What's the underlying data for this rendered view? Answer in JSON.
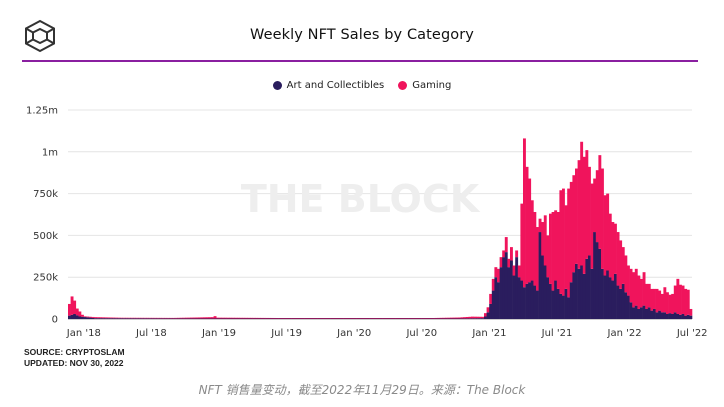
{
  "header": {
    "title": "Weekly NFT Sales by Category"
  },
  "legend": [
    {
      "label": "Art and Collectibles",
      "color": "#2a1d5e"
    },
    {
      "label": "Gaming",
      "color": "#f0145c"
    }
  ],
  "watermark": "THE BLOCK",
  "footer": {
    "source": "SOURCE: CRYPTOSLAM",
    "updated": "UPDATED: NOV 30, 2022"
  },
  "caption": "NFT 销售量变动，截至2022年11月29日。来源：The Block",
  "chart_data": {
    "type": "bar",
    "stacked": true,
    "title": "Weekly NFT Sales by Category",
    "xlabel": "",
    "ylabel": "",
    "ylim": [
      0,
      1250000
    ],
    "yticks": [
      0,
      250000,
      500000,
      750000,
      1000000,
      1250000
    ],
    "ytick_labels": [
      "0",
      "250k",
      "500k",
      "750k",
      "1m",
      "1.25m"
    ],
    "xtick_labels": [
      "Jan '18",
      "Jul '18",
      "Jan '19",
      "Jul '19",
      "Jan '20",
      "Jul '20",
      "Jan '21",
      "Jul '21",
      "Jan '22",
      "Jul '22"
    ],
    "grid": true,
    "legend_position": "top-center",
    "series": [
      {
        "name": "Art and Collectibles",
        "color": "#2a1d5e",
        "anchors": [
          [
            0,
            20000
          ],
          [
            2,
            30000
          ],
          [
            4,
            15000
          ],
          [
            10,
            5000
          ],
          [
            50,
            3000
          ],
          [
            100,
            3000
          ],
          [
            150,
            3000
          ],
          [
            159,
            5000
          ],
          [
            160,
            15000
          ],
          [
            161,
            40000
          ],
          [
            162,
            90000
          ],
          [
            163,
            170000
          ],
          [
            164,
            250000
          ],
          [
            165,
            220000
          ],
          [
            166,
            310000
          ],
          [
            167,
            370000
          ],
          [
            168,
            400000
          ],
          [
            169,
            310000
          ],
          [
            170,
            350000
          ],
          [
            171,
            260000
          ],
          [
            172,
            370000
          ],
          [
            173,
            250000
          ],
          [
            174,
            230000
          ],
          [
            175,
            190000
          ],
          [
            176,
            210000
          ],
          [
            177,
            220000
          ],
          [
            178,
            230000
          ],
          [
            179,
            200000
          ],
          [
            180,
            170000
          ],
          [
            181,
            520000
          ],
          [
            182,
            380000
          ],
          [
            183,
            320000
          ],
          [
            184,
            250000
          ],
          [
            185,
            210000
          ],
          [
            186,
            170000
          ],
          [
            187,
            230000
          ],
          [
            188,
            180000
          ],
          [
            189,
            150000
          ],
          [
            190,
            140000
          ],
          [
            191,
            180000
          ],
          [
            192,
            130000
          ],
          [
            193,
            220000
          ],
          [
            194,
            280000
          ],
          [
            195,
            330000
          ],
          [
            196,
            300000
          ],
          [
            197,
            320000
          ],
          [
            198,
            270000
          ],
          [
            199,
            360000
          ],
          [
            200,
            380000
          ],
          [
            201,
            300000
          ],
          [
            202,
            520000
          ],
          [
            203,
            460000
          ],
          [
            204,
            420000
          ],
          [
            205,
            300000
          ],
          [
            206,
            260000
          ],
          [
            207,
            290000
          ],
          [
            208,
            250000
          ],
          [
            209,
            230000
          ],
          [
            210,
            270000
          ],
          [
            211,
            200000
          ],
          [
            212,
            180000
          ],
          [
            213,
            210000
          ],
          [
            214,
            160000
          ],
          [
            215,
            140000
          ],
          [
            216,
            100000
          ],
          [
            217,
            70000
          ],
          [
            218,
            80000
          ],
          [
            219,
            60000
          ],
          [
            220,
            70000
          ],
          [
            221,
            80000
          ],
          [
            222,
            60000
          ],
          [
            223,
            70000
          ],
          [
            224,
            50000
          ],
          [
            225,
            60000
          ],
          [
            226,
            40000
          ],
          [
            227,
            50000
          ],
          [
            228,
            40000
          ],
          [
            229,
            40000
          ],
          [
            230,
            30000
          ],
          [
            231,
            35000
          ],
          [
            232,
            30000
          ],
          [
            233,
            40000
          ],
          [
            234,
            30000
          ],
          [
            235,
            25000
          ],
          [
            236,
            30000
          ],
          [
            237,
            20000
          ],
          [
            238,
            25000
          ],
          [
            239,
            20000
          ]
        ]
      },
      {
        "name": "Gaming",
        "color": "#f0145c",
        "anchors": [
          [
            0,
            70000
          ],
          [
            1,
            110000
          ],
          [
            2,
            80000
          ],
          [
            3,
            40000
          ],
          [
            4,
            30000
          ],
          [
            5,
            12000
          ],
          [
            6,
            4000
          ],
          [
            10,
            6000
          ],
          [
            20,
            3000
          ],
          [
            40,
            3000
          ],
          [
            55,
            8000
          ],
          [
            56,
            14000
          ],
          [
            57,
            5000
          ],
          [
            80,
            3000
          ],
          [
            100,
            3000
          ],
          [
            120,
            3000
          ],
          [
            140,
            3000
          ],
          [
            150,
            6000
          ],
          [
            155,
            10000
          ],
          [
            159,
            8000
          ],
          [
            160,
            20000
          ],
          [
            161,
            30000
          ],
          [
            162,
            60000
          ],
          [
            163,
            70000
          ],
          [
            164,
            60000
          ],
          [
            165,
            80000
          ],
          [
            166,
            60000
          ],
          [
            167,
            40000
          ],
          [
            168,
            90000
          ],
          [
            169,
            50000
          ],
          [
            170,
            80000
          ],
          [
            171,
            60000
          ],
          [
            172,
            40000
          ],
          [
            173,
            70000
          ],
          [
            174,
            460000
          ],
          [
            175,
            890000
          ],
          [
            176,
            700000
          ],
          [
            177,
            620000
          ],
          [
            178,
            480000
          ],
          [
            179,
            440000
          ],
          [
            180,
            380000
          ],
          [
            181,
            80000
          ],
          [
            182,
            200000
          ],
          [
            183,
            300000
          ],
          [
            184,
            250000
          ],
          [
            185,
            420000
          ],
          [
            186,
            470000
          ],
          [
            187,
            420000
          ],
          [
            188,
            460000
          ],
          [
            189,
            620000
          ],
          [
            190,
            640000
          ],
          [
            191,
            500000
          ],
          [
            192,
            650000
          ],
          [
            193,
            600000
          ],
          [
            194,
            580000
          ],
          [
            195,
            570000
          ],
          [
            196,
            650000
          ],
          [
            197,
            740000
          ],
          [
            198,
            700000
          ],
          [
            199,
            650000
          ],
          [
            200,
            530000
          ],
          [
            201,
            510000
          ],
          [
            202,
            320000
          ],
          [
            203,
            430000
          ],
          [
            204,
            560000
          ],
          [
            205,
            600000
          ],
          [
            206,
            480000
          ],
          [
            207,
            460000
          ],
          [
            208,
            380000
          ],
          [
            209,
            350000
          ],
          [
            210,
            300000
          ],
          [
            211,
            320000
          ],
          [
            212,
            290000
          ],
          [
            213,
            220000
          ],
          [
            214,
            220000
          ],
          [
            215,
            180000
          ],
          [
            216,
            200000
          ],
          [
            217,
            210000
          ],
          [
            218,
            220000
          ],
          [
            219,
            200000
          ],
          [
            220,
            170000
          ],
          [
            221,
            200000
          ],
          [
            222,
            150000
          ],
          [
            223,
            140000
          ],
          [
            224,
            130000
          ],
          [
            225,
            120000
          ],
          [
            226,
            140000
          ],
          [
            227,
            120000
          ],
          [
            228,
            110000
          ],
          [
            229,
            150000
          ],
          [
            230,
            130000
          ],
          [
            231,
            110000
          ],
          [
            232,
            120000
          ],
          [
            233,
            160000
          ],
          [
            234,
            210000
          ],
          [
            235,
            180000
          ],
          [
            236,
            170000
          ],
          [
            237,
            160000
          ],
          [
            238,
            150000
          ],
          [
            239,
            40000
          ]
        ]
      }
    ]
  }
}
